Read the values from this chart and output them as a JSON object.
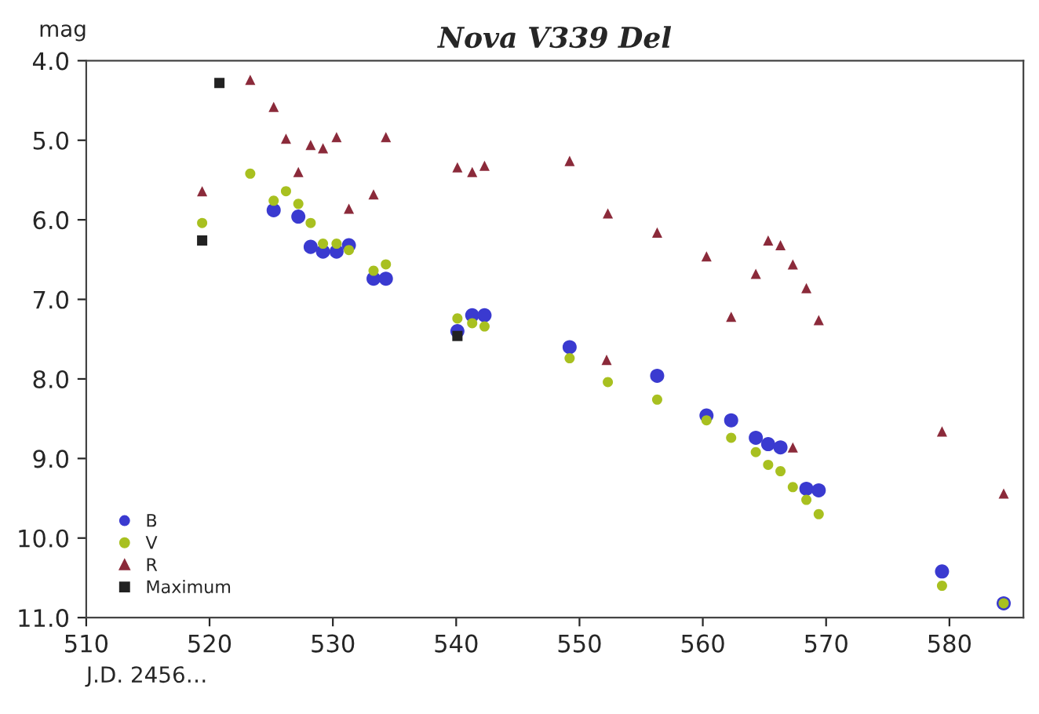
{
  "chart_data": {
    "type": "scatter",
    "title": "Nova V339 Del",
    "xlabel": "J.D. 2456…",
    "ylabel": "mag",
    "xlim": [
      510,
      586
    ],
    "ylim": [
      11.0,
      4.0
    ],
    "xticks": [
      510,
      520,
      530,
      540,
      550,
      560,
      570,
      580
    ],
    "yticks": [
      {
        "value": 4.0,
        "label": "4.0"
      },
      {
        "value": 5.0,
        "label": "5.0"
      },
      {
        "value": 6.0,
        "label": "6.0"
      },
      {
        "value": 7.0,
        "label": "7.0"
      },
      {
        "value": 8.0,
        "label": "8.0"
      },
      {
        "value": 9.0,
        "label": "9.0"
      },
      {
        "value": 10.0,
        "label": "10.0"
      },
      {
        "value": 11.0,
        "label": "11.0"
      }
    ],
    "grid": false,
    "legend": "bottom left",
    "series": [
      {
        "name": "B",
        "color": "#3a3ad0",
        "marker": "circle",
        "x": [
          525.2,
          527.2,
          528.2,
          529.2,
          530.3,
          531.3,
          533.3,
          534.3,
          540.1,
          541.3,
          542.3,
          549.2,
          556.3,
          560.3,
          562.3,
          564.3,
          565.3,
          566.3,
          568.4,
          569.4,
          579.4,
          584.4
        ],
        "values": [
          5.88,
          5.96,
          6.34,
          6.4,
          6.4,
          6.32,
          6.74,
          6.74,
          7.4,
          7.2,
          7.2,
          7.6,
          7.96,
          8.46,
          8.52,
          8.74,
          8.82,
          8.86,
          9.38,
          9.4,
          10.42,
          10.82
        ]
      },
      {
        "name": "V",
        "color": "#a8c020",
        "marker": "circle",
        "x": [
          519.4,
          523.3,
          525.2,
          526.2,
          527.2,
          528.2,
          529.2,
          530.3,
          531.3,
          533.3,
          534.3,
          540.1,
          541.3,
          542.3,
          549.2,
          552.3,
          556.3,
          560.3,
          562.3,
          564.3,
          565.3,
          566.3,
          567.3,
          568.4,
          569.4,
          579.4,
          584.4
        ],
        "values": [
          6.04,
          5.42,
          5.76,
          5.64,
          5.8,
          6.04,
          6.3,
          6.3,
          6.38,
          6.64,
          6.56,
          7.24,
          7.3,
          7.34,
          7.74,
          8.04,
          8.26,
          8.52,
          8.74,
          8.92,
          9.08,
          9.16,
          9.36,
          9.52,
          9.7,
          10.6,
          10.82
        ]
      },
      {
        "name": "R",
        "color": "#8b2a3a",
        "marker": "triangle",
        "x": [
          519.4,
          523.3,
          525.2,
          526.2,
          527.2,
          528.2,
          529.2,
          530.3,
          531.3,
          533.3,
          534.3,
          540.1,
          541.3,
          542.3,
          549.2,
          552.3,
          552.2,
          556.3,
          560.3,
          562.3,
          564.3,
          565.3,
          566.3,
          567.3,
          567.3,
          568.4,
          569.4,
          579.4,
          584.4
        ],
        "values": [
          5.64,
          4.24,
          4.58,
          4.98,
          5.4,
          5.06,
          5.1,
          4.96,
          5.86,
          5.68,
          4.96,
          5.34,
          5.4,
          5.32,
          5.26,
          5.92,
          7.76,
          6.16,
          6.46,
          7.22,
          6.68,
          6.26,
          6.32,
          6.56,
          8.86,
          6.86,
          7.26,
          8.66,
          9.44
        ]
      },
      {
        "name": "Maximum",
        "color": "#222222",
        "marker": "square",
        "x": [
          520.8,
          519.4,
          540.1
        ],
        "values": [
          4.28,
          6.26,
          7.46
        ]
      }
    ]
  }
}
